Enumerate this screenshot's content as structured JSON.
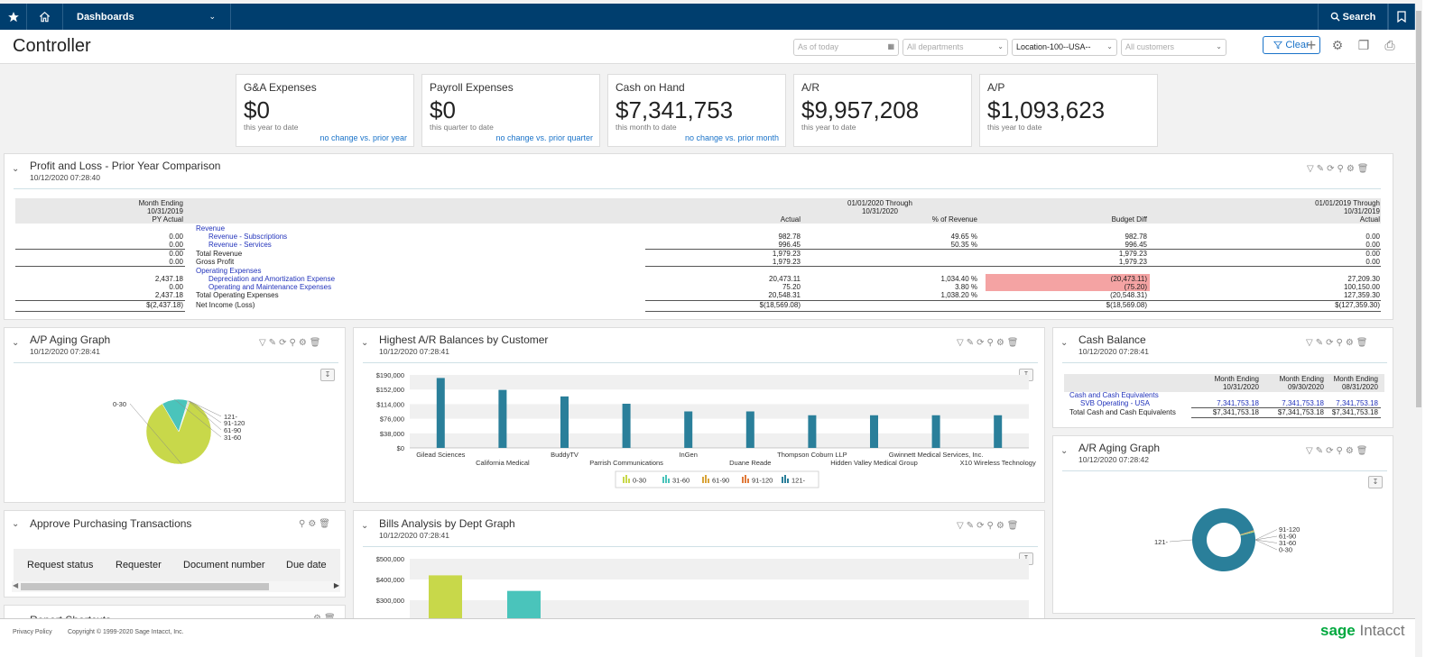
{
  "nav": {
    "dashboards_label": "Dashboards",
    "search_label": "Search"
  },
  "header": {
    "title": "Controller",
    "as_of_placeholder": "As of today",
    "departments_placeholder": "All departments",
    "location_value": "Location-100--USA--",
    "customers_placeholder": "All customers",
    "clear_label": "Clear"
  },
  "kpis": [
    {
      "title": "G&A Expenses",
      "value": "$0",
      "sub": "this year to date",
      "change": "no change vs. prior year"
    },
    {
      "title": "Payroll Expenses",
      "value": "$0",
      "sub": "this quarter to date",
      "change": "no change vs. prior quarter"
    },
    {
      "title": "Cash on Hand",
      "value": "$7,341,753",
      "sub": "this month to date",
      "change": "no change vs. prior month"
    },
    {
      "title": "A/R",
      "value": "$9,957,208",
      "sub": "this year to date",
      "change": ""
    },
    {
      "title": "A/P",
      "value": "$1,093,623",
      "sub": "this year to date",
      "change": ""
    }
  ],
  "pl": {
    "title": "Profit and Loss - Prior Year Comparison",
    "date": "10/12/2020 07:28:40",
    "left_header": [
      "Month Ending",
      "10/31/2019",
      "PY Actual"
    ],
    "mid_header": [
      "01/01/2020 Through",
      "10/31/2020"
    ],
    "col_actual": "Actual",
    "col_pct": "% of Revenue",
    "col_budget": "Budget Diff",
    "right_header": [
      "01/01/2019 Through",
      "10/31/2019",
      "Actual"
    ],
    "rows": [
      {
        "py": "",
        "label": "Revenue",
        "indent": 0,
        "link": true,
        "actual": "",
        "pct": "",
        "budget": "",
        "ry": ""
      },
      {
        "py": "0.00",
        "label": "Revenue - Subscriptions",
        "indent": 1,
        "link": true,
        "actual": "982.78",
        "pct": "49.65 %",
        "budget": "982.78",
        "ry": "0.00"
      },
      {
        "py": "0.00",
        "label": "Revenue - Services",
        "indent": 1,
        "link": true,
        "actual": "996.45",
        "pct": "50.35 %",
        "budget": "996.45",
        "ry": "0.00"
      },
      {
        "py": "0.00",
        "label": "Total Revenue",
        "indent": 0,
        "link": false,
        "actual": "1,979.23",
        "pct": "",
        "budget": "1,979.23",
        "ry": "0.00"
      },
      {
        "py": "0.00",
        "label": "Gross Profit",
        "indent": 0,
        "link": false,
        "actual": "1,979.23",
        "pct": "",
        "budget": "1,979.23",
        "ry": "0.00"
      },
      {
        "py": "",
        "label": "Operating Expenses",
        "indent": 0,
        "link": true,
        "actual": "",
        "pct": "",
        "budget": "",
        "ry": ""
      },
      {
        "py": "2,437.18",
        "label": "Depreciation and Amortization Expense",
        "indent": 1,
        "link": true,
        "actual": "20,473.11",
        "pct": "1,034.40 %",
        "budget": "(20,473.11)",
        "ry": "27,209.30"
      },
      {
        "py": "0.00",
        "label": "Operating and Maintenance Expenses",
        "indent": 1,
        "link": true,
        "actual": "75.20",
        "pct": "3.80 %",
        "budget": "(75.20)",
        "ry": "100,150.00"
      },
      {
        "py": "2,437.18",
        "label": "Total Operating Expenses",
        "indent": 0,
        "link": false,
        "actual": "20,548.31",
        "pct": "1,038.20 %",
        "budget": "(20,548.31)",
        "ry": "127,359.30"
      },
      {
        "py": "$(2,437.18)",
        "label": "Net Income (Loss)",
        "indent": 0,
        "link": false,
        "actual": "$(18,569.08)",
        "pct": "",
        "budget": "$(18,569.08)",
        "ry": "$(127,359.30)"
      }
    ]
  },
  "ap_aging": {
    "title": "A/P Aging Graph",
    "date": "10/12/2020 07:28:41",
    "chart_data": {
      "type": "pie",
      "labels": [
        "0-30",
        "31-60",
        "61-90",
        "91-120",
        "121-"
      ],
      "values": [
        86,
        13,
        0.4,
        0.3,
        0.3
      ],
      "colors": [
        "#c8d84a",
        "#4ac4bb",
        "#d9a43a",
        "#e07a3a",
        "#2a7f9a"
      ]
    }
  },
  "ar_balances": {
    "title": "Highest A/R Balances by Customer",
    "date": "10/12/2020 07:28:41",
    "chart_data": {
      "type": "bar",
      "categories": [
        "Gilead Sciences",
        "California Medical",
        "BuddyTV",
        "Parrish Communications",
        "InGen",
        "Duane Reade",
        "Thompson Coburn LLP",
        "Hidden Valley Medical Group",
        "Gwinnett Medical Services, Inc.",
        "X10 Wireless Technology"
      ],
      "values": [
        182000,
        151000,
        134000,
        115000,
        95000,
        95000,
        85000,
        85000,
        85000,
        85000
      ],
      "ylim": [
        0,
        190000
      ],
      "yticks": [
        "$190,000",
        "$152,000",
        "$114,000",
        "$76,000",
        "$38,000",
        "$0"
      ],
      "color": "#2a7f9a",
      "legend": [
        "0-30",
        "31-60",
        "61-90",
        "91-120",
        "121-"
      ],
      "legend_colors": [
        "#c8d84a",
        "#4ac4bb",
        "#d9a43a",
        "#e07a3a",
        "#2a7f9a"
      ]
    }
  },
  "cash_balance": {
    "title": "Cash Balance",
    "date": "10/12/2020 07:28:41",
    "cols": [
      [
        "Month Ending",
        "10/31/2020"
      ],
      [
        "Month Ending",
        "09/30/2020"
      ],
      [
        "Month Ending",
        "08/31/2020"
      ]
    ],
    "rows": [
      {
        "label": "Cash and Cash Equivalents",
        "link": true,
        "indent": 0,
        "values": [
          "",
          "",
          ""
        ]
      },
      {
        "label": "SVB Operating - USA",
        "link": true,
        "indent": 1,
        "values": [
          "7,341,753.18",
          "7,341,753.18",
          "7,341,753.18"
        ]
      },
      {
        "label": "Total Cash and Cash Equivalents",
        "link": false,
        "indent": 0,
        "values": [
          "$7,341,753.18",
          "$7,341,753.18",
          "$7,341,753.18"
        ]
      }
    ]
  },
  "approve": {
    "title": "Approve Purchasing Transactions",
    "columns": [
      "Request status",
      "Requester",
      "Document number",
      "Due date"
    ]
  },
  "bills": {
    "title": "Bills Analysis by Dept Graph",
    "date": "10/12/2020 07:28:41",
    "chart_data": {
      "type": "bar",
      "yticks": [
        "$500,000",
        "$400,000",
        "$300,000"
      ],
      "ylim": [
        250000,
        500000
      ],
      "values": [
        420000,
        345000
      ],
      "colors": [
        "#c8d84a",
        "#4ac4bb"
      ]
    }
  },
  "ar_aging": {
    "title": "A/R Aging Graph",
    "date": "10/12/2020 07:28:42",
    "chart_data": {
      "type": "pie",
      "labels": [
        "121-",
        "91-120",
        "61-90",
        "31-60",
        "0-30"
      ],
      "values": [
        99,
        0.25,
        0.25,
        0.25,
        0.25
      ],
      "colors": [
        "#2a7f9a",
        "#e07a3a",
        "#d9a43a",
        "#4ac4bb",
        "#c8d84a"
      ]
    }
  },
  "report_shortcuts": {
    "title": "Report Shortcuts"
  },
  "footer": {
    "privacy": "Privacy Policy",
    "copyright": "Copyright © 1999-2020 Sage Intacct, Inc.",
    "brand_sage": "sage",
    "brand_intacct": "Intacct"
  }
}
